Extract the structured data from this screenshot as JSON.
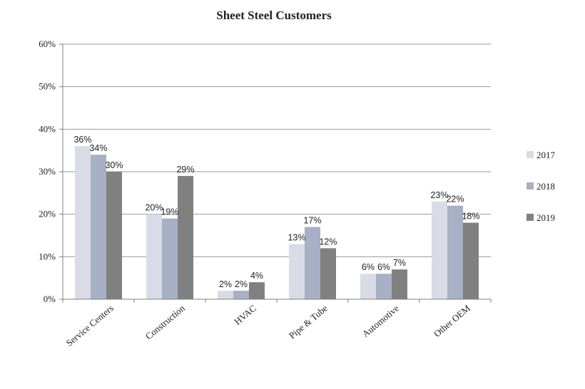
{
  "chart_data": {
    "type": "bar",
    "title": "Sheet Steel Customers",
    "xlabel": "",
    "ylabel": "",
    "categories": [
      "Service Centers",
      "Construction",
      "HVAC",
      "Pipe & Tube",
      "Automotive",
      "Other OEM"
    ],
    "series": [
      {
        "name": "2017",
        "color": "#d9dce6",
        "values": [
          36,
          20,
          2,
          13,
          6,
          23
        ],
        "labels": [
          "36%",
          "20%",
          "2%",
          "13%",
          "6%",
          "23%"
        ]
      },
      {
        "name": "2018",
        "color": "#a7b0c4",
        "values": [
          34,
          19,
          2,
          17,
          6,
          22
        ],
        "labels": [
          "34%",
          "19%",
          "2%",
          "17%",
          "6%",
          "22%"
        ]
      },
      {
        "name": "2019",
        "color": "#808080",
        "values": [
          30,
          29,
          4,
          12,
          7,
          18
        ],
        "labels": [
          "30%",
          "29%",
          "4%",
          "12%",
          "7%",
          "18%"
        ]
      }
    ],
    "ylim": [
      0,
      60
    ],
    "yticks": [
      "0%",
      "10%",
      "20%",
      "30%",
      "40%",
      "50%",
      "60%"
    ],
    "grid": true,
    "legend": "right"
  }
}
